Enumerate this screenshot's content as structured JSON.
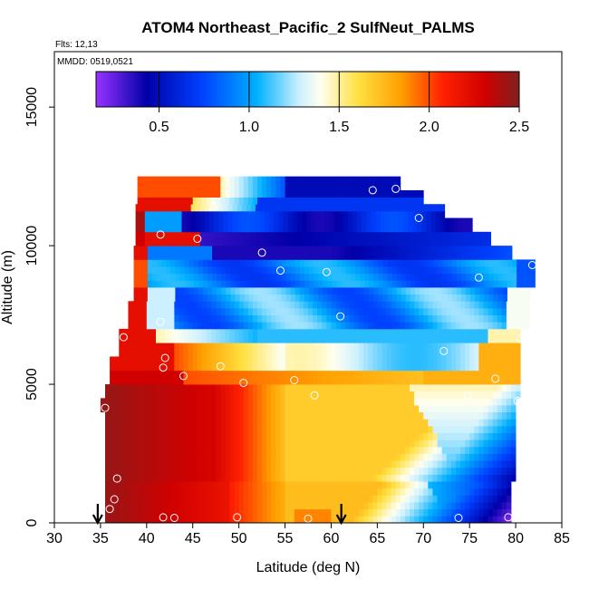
{
  "chart_data": {
    "type": "heatmap",
    "title": "ATOM4 Northeast_Pacific_2 SulfNeut_PALMS",
    "subtitle_lines": [
      "Flts: 12,13",
      "MMDD: 0519,0521"
    ],
    "xlabel": "Latitude (deg N)",
    "ylabel": "Altitude (m)",
    "xlim": [
      30,
      85
    ],
    "ylim": [
      0,
      17000
    ],
    "x_ticks": [
      30,
      35,
      40,
      45,
      50,
      55,
      60,
      65,
      70,
      75,
      80,
      85
    ],
    "y_ticks": [
      0,
      5000,
      10000,
      15000
    ],
    "colorbar": {
      "range": [
        0.15,
        2.5
      ],
      "ticks": [
        0.5,
        1.0,
        1.5,
        2.0,
        2.5
      ],
      "tick_labels": [
        "0.5",
        "1.0",
        "1.5",
        "2.0",
        "2.5"
      ],
      "colors": [
        "#8a2be2",
        "#0000a8",
        "#1e90ff",
        "#00bfff",
        "#ffffff",
        "#ffff99",
        "#ffd700",
        "#ff8c00",
        "#ff0000",
        "#8b1a1a"
      ],
      "placement": "top, inside plot"
    },
    "samples": [
      {
        "lat": 38.5,
        "alt": 12200
      },
      {
        "lat": 41.5,
        "alt": 10400
      },
      {
        "lat": 45.5,
        "alt": 10250
      },
      {
        "lat": 52.5,
        "alt": 9750
      },
      {
        "lat": 54.5,
        "alt": 9100
      },
      {
        "lat": 59.5,
        "alt": 9050
      },
      {
        "lat": 64.5,
        "alt": 12000
      },
      {
        "lat": 67,
        "alt": 12050
      },
      {
        "lat": 69.5,
        "alt": 11000
      },
      {
        "lat": 76,
        "alt": 8850
      },
      {
        "lat": 81.8,
        "alt": 9300
      },
      {
        "lat": 61,
        "alt": 7450
      },
      {
        "lat": 41.5,
        "alt": 7250
      },
      {
        "lat": 37.5,
        "alt": 6700
      },
      {
        "lat": 42,
        "alt": 5950
      },
      {
        "lat": 41.8,
        "alt": 5600
      },
      {
        "lat": 48,
        "alt": 5650
      },
      {
        "lat": 44,
        "alt": 5300
      },
      {
        "lat": 50.5,
        "alt": 5050
      },
      {
        "lat": 56,
        "alt": 5150
      },
      {
        "lat": 58.2,
        "alt": 4600
      },
      {
        "lat": 72.2,
        "alt": 6200
      },
      {
        "lat": 80.5,
        "alt": 6650
      },
      {
        "lat": 77.8,
        "alt": 5200
      },
      {
        "lat": 74.8,
        "alt": 4600
      },
      {
        "lat": 80.2,
        "alt": 4400
      },
      {
        "lat": 35.5,
        "alt": 4150
      },
      {
        "lat": 36.8,
        "alt": 1600
      },
      {
        "lat": 36.5,
        "alt": 850
      },
      {
        "lat": 36,
        "alt": 500
      },
      {
        "lat": 41.8,
        "alt": 200
      },
      {
        "lat": 43,
        "alt": 180
      },
      {
        "lat": 49.8,
        "alt": 200
      },
      {
        "lat": 57.5,
        "alt": 150
      },
      {
        "lat": 73.8,
        "alt": 180
      },
      {
        "lat": 79.2,
        "alt": 200
      }
    ],
    "arrows_lat": [
      34.7,
      61.1
    ]
  }
}
